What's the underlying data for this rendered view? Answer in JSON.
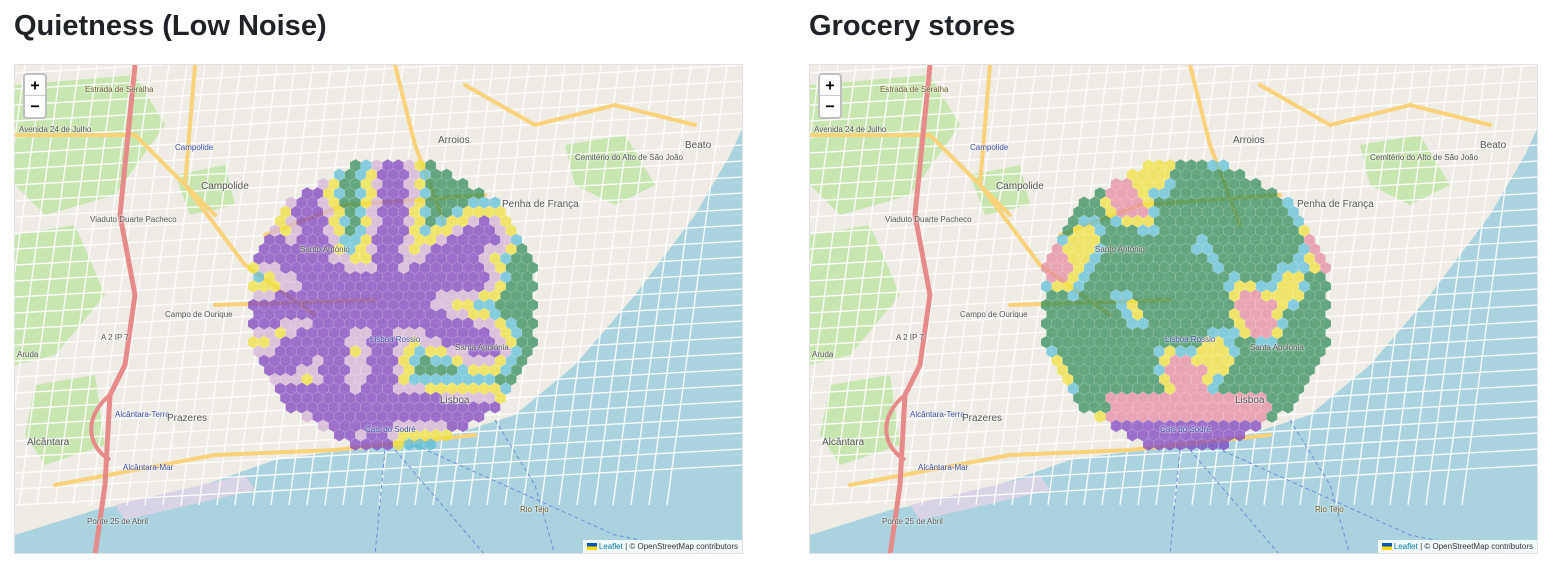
{
  "panels": [
    {
      "title": "Quietness (Low Noise)",
      "mode": "quiet",
      "zoom_in": "+",
      "zoom_out": "−",
      "attribution": {
        "leaflet": "Leaflet",
        "rest": "| © OpenStreetMap contributors"
      }
    },
    {
      "title": "Grocery stores",
      "mode": "grocery",
      "zoom_in": "+",
      "zoom_out": "−",
      "attribution": {
        "leaflet": "Leaflet",
        "rest": "| © OpenStreetMap contributors"
      }
    }
  ],
  "places": {
    "avenida": "Avenida 24 de Julho",
    "estrada": "Estrada de Seralha",
    "campolide_station": "Campolide",
    "campolide": "Campolide",
    "arroios": "Arroios",
    "beato": "Beato",
    "penha": "Penha de França",
    "viaduto": "Viaduto Duarte Pacheco",
    "santo_antonio": "Santo António",
    "campo_ourique": "Campo de Ourique",
    "aruda": "Aruda",
    "a2": "A 2 IP 7",
    "alcantara_terra": "Alcântara-Terra",
    "prazeres": "Prazeres",
    "alcantara": "Alcântara",
    "alcantara_mar": "Alcântara-Mar",
    "lisboa": "Lisboa",
    "lisboa_rossio": "Lisboa Rossio",
    "santa_apolonia": "Santa Apolónia",
    "cais_sodre": "Cais do Sodré",
    "ponte": "Ponte 25 de Abril",
    "rio_tejo": "Rio Tejo",
    "cemiterio": "Cemitério do Alto de São João"
  },
  "palette": {
    "low": "#7b3fbf",
    "mid_low": "#5bbfd8",
    "mid": "#f0e23a",
    "high": "#2e8b57",
    "water": "#aad3df",
    "park": "#c8e6b0",
    "road": "#ffffff",
    "major_road": "#f9d27a",
    "highway": "#e78a8a"
  }
}
